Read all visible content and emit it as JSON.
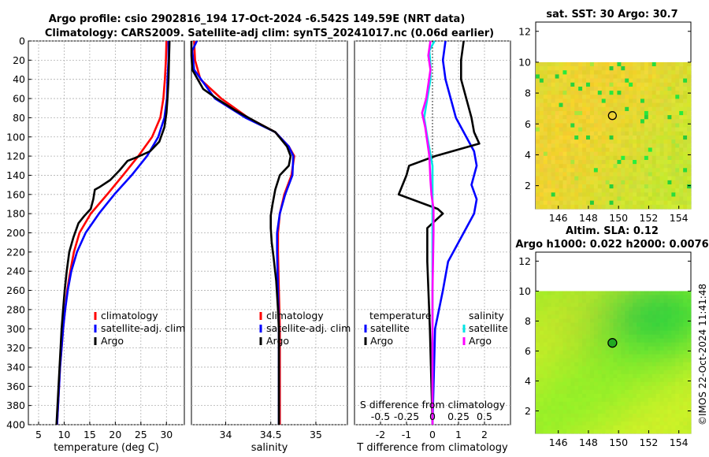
{
  "figure": {
    "title_line1": "Argo profile: csio 2902816_194 17-Oct-2024 -6.542S 149.59E (NRT data)",
    "title_line2": "Climatology: CARS2009. Satellite-adj clim: synTS_20241017.nc (0.06d earlier)",
    "copyright": "©IMOS 22-Oct-2024 11:41:48"
  },
  "chart_data": [
    {
      "id": "temperature",
      "type": "line",
      "xlabel": "temperature (deg C)",
      "xlim": [
        3,
        33.5
      ],
      "ylim": [
        0,
        400
      ],
      "y_inverted": true,
      "xticks": [
        5,
        10,
        15,
        20,
        25,
        30
      ],
      "xtick_labels": [
        "5",
        "10",
        "15",
        "20",
        "25",
        "30"
      ],
      "yticks": [
        0,
        20,
        40,
        60,
        80,
        100,
        120,
        140,
        160,
        180,
        200,
        220,
        240,
        260,
        280,
        300,
        320,
        340,
        360,
        380,
        400
      ],
      "ytick_labels": [
        "0",
        "20",
        "40",
        "60",
        "80",
        "100",
        "120",
        "140",
        "160",
        "180",
        "200",
        "220",
        "240",
        "260",
        "280",
        "300",
        "320",
        "340",
        "360",
        "380",
        "400"
      ],
      "grid": true,
      "legend": [
        "climatology",
        "satellite-adj. clim",
        "Argo"
      ],
      "series": [
        {
          "name": "climatology",
          "color": "#ff0000",
          "points": [
            [
              30.0,
              0
            ],
            [
              29.9,
              20
            ],
            [
              29.7,
              40
            ],
            [
              29.4,
              60
            ],
            [
              28.8,
              80
            ],
            [
              27.2,
              100
            ],
            [
              24.5,
              120
            ],
            [
              21.5,
              140
            ],
            [
              18.4,
              160
            ],
            [
              15.2,
              180
            ],
            [
              13.0,
              200
            ],
            [
              11.9,
              220
            ],
            [
              11.2,
              240
            ],
            [
              10.6,
              260
            ],
            [
              10.2,
              280
            ],
            [
              9.8,
              300
            ],
            [
              9.5,
              320
            ],
            [
              9.2,
              340
            ],
            [
              9.0,
              360
            ],
            [
              8.8,
              380
            ],
            [
              8.6,
              400
            ]
          ]
        },
        {
          "name": "satellite-adj. clim",
          "color": "#0000ff",
          "points": [
            [
              30.4,
              0
            ],
            [
              30.4,
              20
            ],
            [
              30.2,
              40
            ],
            [
              30.1,
              60
            ],
            [
              29.6,
              80
            ],
            [
              28.4,
              100
            ],
            [
              26.2,
              120
            ],
            [
              23.2,
              140
            ],
            [
              19.8,
              160
            ],
            [
              16.8,
              180
            ],
            [
              14.2,
              200
            ],
            [
              12.5,
              220
            ],
            [
              11.4,
              240
            ],
            [
              10.7,
              260
            ],
            [
              10.2,
              280
            ],
            [
              9.8,
              300
            ],
            [
              9.5,
              320
            ],
            [
              9.2,
              340
            ],
            [
              9.0,
              360
            ],
            [
              8.8,
              380
            ],
            [
              8.6,
              400
            ]
          ]
        },
        {
          "name": "Argo",
          "color": "#000000",
          "points": [
            [
              30.6,
              0
            ],
            [
              30.5,
              20
            ],
            [
              30.4,
              40
            ],
            [
              30.2,
              60
            ],
            [
              30.0,
              75
            ],
            [
              29.6,
              90
            ],
            [
              28.6,
              105
            ],
            [
              26.8,
              115
            ],
            [
              24.3,
              121
            ],
            [
              22.4,
              125
            ],
            [
              20.8,
              135
            ],
            [
              19.0,
              145
            ],
            [
              17.0,
              152
            ],
            [
              16.0,
              155
            ],
            [
              15.7,
              165
            ],
            [
              15.2,
              175
            ],
            [
              14.0,
              182
            ],
            [
              12.8,
              190
            ],
            [
              11.8,
              205
            ],
            [
              11.0,
              220
            ],
            [
              10.5,
              240
            ],
            [
              10.1,
              260
            ],
            [
              9.8,
              280
            ],
            [
              9.5,
              300
            ],
            [
              9.3,
              320
            ],
            [
              9.1,
              340
            ],
            [
              8.9,
              360
            ],
            [
              8.7,
              380
            ],
            [
              8.5,
              400
            ]
          ]
        }
      ]
    },
    {
      "id": "salinity",
      "type": "line",
      "xlabel": "salinity",
      "xlim": [
        33.62,
        35.35
      ],
      "ylim": [
        0,
        400
      ],
      "y_inverted": true,
      "xticks": [
        34,
        34.5,
        35
      ],
      "xtick_labels": [
        "34",
        "34.5",
        "35"
      ],
      "grid": true,
      "legend": [
        "climatology",
        "satellite-adj. clim",
        "Argo"
      ],
      "series": [
        {
          "name": "climatology",
          "color": "#ff0000",
          "points": [
            [
              33.65,
              0
            ],
            [
              33.66,
              20
            ],
            [
              33.72,
              40
            ],
            [
              33.95,
              60
            ],
            [
              34.25,
              80
            ],
            [
              34.55,
              95
            ],
            [
              34.7,
              110
            ],
            [
              34.76,
              120
            ],
            [
              34.73,
              140
            ],
            [
              34.65,
              160
            ],
            [
              34.6,
              180
            ],
            [
              34.58,
              200
            ],
            [
              34.58,
              220
            ],
            [
              34.59,
              260
            ],
            [
              34.6,
              300
            ],
            [
              34.6,
              400
            ]
          ]
        },
        {
          "name": "satellite-adj. clim",
          "color": "#0000ff",
          "points": [
            [
              33.68,
              0
            ],
            [
              33.63,
              10
            ],
            [
              33.65,
              30
            ],
            [
              33.88,
              60
            ],
            [
              34.22,
              80
            ],
            [
              34.55,
              95
            ],
            [
              34.7,
              110
            ],
            [
              34.75,
              120
            ],
            [
              34.74,
              140
            ],
            [
              34.66,
              160
            ],
            [
              34.6,
              180
            ],
            [
              34.57,
              200
            ],
            [
              34.57,
              220
            ],
            [
              34.58,
              260
            ],
            [
              34.59,
              300
            ],
            [
              34.59,
              400
            ]
          ]
        },
        {
          "name": "Argo",
          "color": "#000000",
          "points": [
            [
              33.62,
              0
            ],
            [
              33.62,
              15
            ],
            [
              33.63,
              30
            ],
            [
              33.75,
              50
            ],
            [
              33.9,
              60
            ],
            [
              34.1,
              72
            ],
            [
              34.35,
              85
            ],
            [
              34.55,
              95
            ],
            [
              34.68,
              110
            ],
            [
              34.72,
              120
            ],
            [
              34.7,
              130
            ],
            [
              34.6,
              140
            ],
            [
              34.55,
              155
            ],
            [
              34.52,
              170
            ],
            [
              34.5,
              182
            ],
            [
              34.5,
              195
            ],
            [
              34.51,
              210
            ],
            [
              34.53,
              225
            ],
            [
              34.56,
              250
            ],
            [
              34.58,
              280
            ],
            [
              34.59,
              300
            ],
            [
              34.59,
              400
            ]
          ]
        }
      ]
    },
    {
      "id": "differences",
      "type": "line",
      "xlabel": "T difference from climatology",
      "xlabel_top": "S difference from climatology",
      "xlim": [
        -3,
        3
      ],
      "ylim": [
        0,
        400
      ],
      "y_inverted": true,
      "xticks": [
        -2,
        -1,
        0,
        1,
        2
      ],
      "xtick_labels": [
        "-2",
        "-1",
        "0",
        "1",
        "2"
      ],
      "s_ticks": [
        -0.5,
        -0.25,
        0,
        0.25,
        0.5
      ],
      "s_tick_labels": [
        "-0.5",
        "-0.25",
        "0",
        "0.25",
        "0.5"
      ],
      "grid": true,
      "legend_temperature": {
        "title": "temperature",
        "entries": [
          "satellite",
          "Argo"
        ]
      },
      "legend_salinity": {
        "title": "salinity",
        "entries": [
          "satellite",
          "Argo"
        ]
      },
      "series": [
        {
          "name": "temperature satellite",
          "color": "#0000ff",
          "points": [
            [
              0.5,
              0
            ],
            [
              0.4,
              20
            ],
            [
              0.5,
              40
            ],
            [
              0.7,
              60
            ],
            [
              0.9,
              80
            ],
            [
              1.3,
              100
            ],
            [
              1.6,
              115
            ],
            [
              1.7,
              130
            ],
            [
              1.5,
              150
            ],
            [
              1.7,
              165
            ],
            [
              1.6,
              180
            ],
            [
              1.3,
              195
            ],
            [
              0.6,
              230
            ],
            [
              0.4,
              260
            ],
            [
              0.1,
              300
            ],
            [
              0.0,
              400
            ]
          ]
        },
        {
          "name": "temperature Argo",
          "color": "#000000",
          "points": [
            [
              1.2,
              0
            ],
            [
              1.1,
              20
            ],
            [
              1.1,
              40
            ],
            [
              1.3,
              60
            ],
            [
              1.5,
              80
            ],
            [
              1.6,
              95
            ],
            [
              1.8,
              107
            ],
            [
              0.1,
              120
            ],
            [
              -0.9,
              130
            ],
            [
              -1.0,
              140
            ],
            [
              -1.3,
              160
            ],
            [
              0.2,
              175
            ],
            [
              0.4,
              180
            ],
            [
              -0.2,
              195
            ],
            [
              -0.2,
              230
            ],
            [
              -0.1,
              300
            ],
            [
              0.0,
              400
            ]
          ]
        },
        {
          "name": "salinity satellite",
          "color": "#00e5e5",
          "points": [
            [
              0.02,
              0
            ],
            [
              -0.03,
              10
            ],
            [
              -0.02,
              25
            ],
            [
              -0.02,
              40
            ],
            [
              -0.05,
              60
            ],
            [
              -0.08,
              80
            ],
            [
              -0.05,
              100
            ],
            [
              0.0,
              130
            ],
            [
              0.0,
              400
            ]
          ]
        },
        {
          "name": "salinity Argo",
          "color": "#ff00ff",
          "points": [
            [
              -0.02,
              0
            ],
            [
              -0.04,
              15
            ],
            [
              -0.02,
              30
            ],
            [
              -0.06,
              60
            ],
            [
              -0.1,
              75
            ],
            [
              -0.07,
              90
            ],
            [
              -0.05,
              105
            ],
            [
              -0.03,
              120
            ],
            [
              -0.02,
              145
            ],
            [
              -0.01,
              160
            ],
            [
              0.01,
              175
            ],
            [
              0.01,
              200
            ],
            [
              0.0,
              260
            ],
            [
              0.0,
              400
            ]
          ]
        }
      ]
    },
    {
      "id": "sst-map",
      "type": "heatmap",
      "title": "sat. SST: 30 Argo: 30.7",
      "xlim": [
        144.5,
        154.8
      ],
      "ylim": [
        0.5,
        12.6
      ],
      "xticks": [
        146,
        148,
        150,
        152,
        154
      ],
      "xtick_labels": [
        "146",
        "148",
        "150",
        "152",
        "154"
      ],
      "yticks": [
        2,
        4,
        6,
        8,
        10,
        12
      ],
      "ytick_labels": [
        "2",
        "4",
        "6",
        "8",
        "10",
        "12"
      ],
      "data_top": 10,
      "marker": {
        "lon": 149.59,
        "lat": 6.54
      }
    },
    {
      "id": "sla-map",
      "type": "heatmap",
      "title_line1": "Altim. SLA: 0.12",
      "title_line2": "Argo h1000: 0.022 h2000: 0.0076",
      "xlim": [
        144.5,
        154.8
      ],
      "ylim": [
        0.5,
        12.6
      ],
      "xticks": [
        146,
        148,
        150,
        152,
        154
      ],
      "xtick_labels": [
        "146",
        "148",
        "150",
        "152",
        "154"
      ],
      "yticks": [
        2,
        4,
        6,
        8,
        10,
        12
      ],
      "ytick_labels": [
        "2",
        "4",
        "6",
        "8",
        "10",
        "12"
      ],
      "data_top": 10,
      "marker": {
        "lon": 149.59,
        "lat": 6.54
      }
    }
  ]
}
